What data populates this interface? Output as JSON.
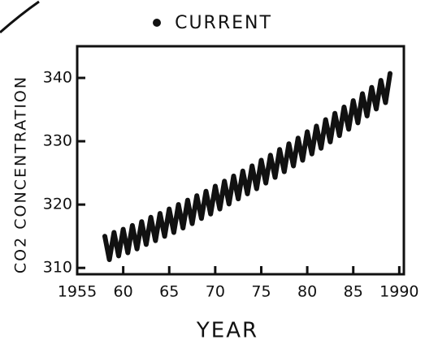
{
  "chart_data": {
    "type": "line",
    "title": "CURRENT",
    "x_label": "YEAR",
    "y_label": "CO2 CONCENTRATION",
    "x": [
      1958,
      1958.5,
      1959,
      1959.5,
      1960,
      1960.5,
      1961,
      1961.5,
      1962,
      1962.5,
      1963,
      1963.5,
      1964,
      1964.5,
      1965,
      1965.5,
      1966,
      1966.5,
      1967,
      1967.5,
      1968,
      1968.5,
      1969,
      1969.5,
      1970,
      1970.5,
      1971,
      1971.5,
      1972,
      1972.5,
      1973,
      1973.5,
      1974,
      1974.5,
      1975,
      1975.5,
      1976,
      1976.5,
      1977,
      1977.5,
      1978,
      1978.5,
      1979,
      1979.5,
      1980,
      1980.5,
      1981,
      1981.5,
      1982,
      1982.5,
      1983,
      1983.5,
      1984,
      1984.5,
      1985,
      1985.5,
      1986,
      1986.5,
      1987,
      1987.5,
      1988,
      1988.5,
      1989
    ],
    "values": [
      315.0,
      311.3,
      315.6,
      311.9,
      316.1,
      312.4,
      316.7,
      313.0,
      317.3,
      313.7,
      318.0,
      314.3,
      318.6,
      315.0,
      319.3,
      315.6,
      320.0,
      316.3,
      320.7,
      317.0,
      321.4,
      317.8,
      322.1,
      318.5,
      322.9,
      319.3,
      323.7,
      320.1,
      324.5,
      320.9,
      325.3,
      321.7,
      326.1,
      322.5,
      327.0,
      323.4,
      327.8,
      324.3,
      328.7,
      325.2,
      329.6,
      326.1,
      330.5,
      327.0,
      331.5,
      328.0,
      332.4,
      328.9,
      333.4,
      329.9,
      334.4,
      330.9,
      335.4,
      331.9,
      336.4,
      332.9,
      337.5,
      334.0,
      338.5,
      335.1,
      339.6,
      336.1,
      340.7
    ],
    "color": "#111111",
    "xlim": [
      1955,
      1990.5
    ],
    "xticks": [
      1955,
      {
        "value": 1960,
        "label": "60"
      },
      {
        "value": 1965,
        "label": "65"
      },
      {
        "value": 1970,
        "label": "70"
      },
      {
        "value": 1975,
        "label": "75"
      },
      {
        "value": 1980,
        "label": "80"
      },
      {
        "value": 1985,
        "label": "85"
      },
      1990
    ],
    "ylim": [
      309,
      345
    ],
    "yticks": [
      310,
      320,
      330,
      340
    ]
  }
}
